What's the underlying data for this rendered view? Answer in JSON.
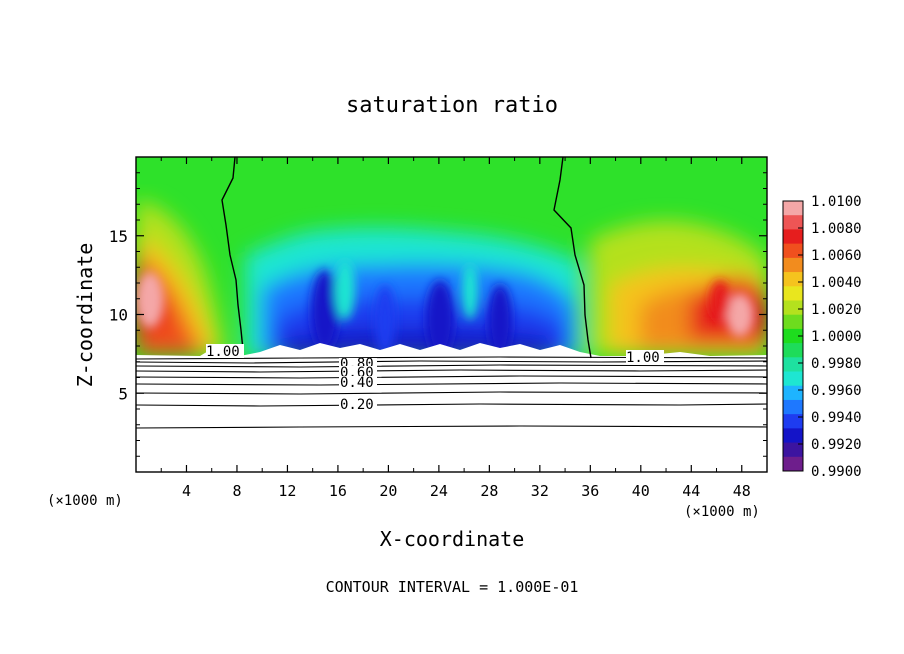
{
  "chart_data": {
    "type": "heatmap",
    "title": "saturation ratio",
    "xlabel": "X-coordinate",
    "ylabel": "Z-coordinate",
    "x_unit_left": "(×1000 m)",
    "x_unit_right": "(×1000 m)",
    "footnote": "CONTOUR INTERVAL = 1.000E-01",
    "xlim": [
      0,
      50
    ],
    "ylim": [
      0,
      20
    ],
    "x_ticks": [
      "4",
      "8",
      "12",
      "16",
      "20",
      "24",
      "28",
      "32",
      "36",
      "40",
      "44",
      "48"
    ],
    "y_ticks": [
      "5",
      "10",
      "15"
    ],
    "colorbar": {
      "range": [
        0.99,
        1.01
      ],
      "labels": [
        "1.0100",
        "1.0080",
        "1.0060",
        "1.0040",
        "1.0020",
        "1.0000",
        "0.9980",
        "0.9960",
        "0.9940",
        "0.9920",
        "0.9900"
      ],
      "colors": [
        "#f4a7a7",
        "#ee5555",
        "#e61e1e",
        "#f0501e",
        "#f28c1e",
        "#f5c31e",
        "#e9e61e",
        "#b4e11e",
        "#6edc1e",
        "#1edc1e",
        "#1edc5a",
        "#1ee1a0",
        "#1ee6d2",
        "#1eb4ff",
        "#1e78ff",
        "#1e3cf0",
        "#1414c8",
        "#3c14a0",
        "#6e1e8c"
      ]
    },
    "contour_labels": [
      "1.00",
      "1.00",
      "0.80",
      "0.60",
      "0.40",
      "0.20"
    ],
    "contour_levels": [
      0.2,
      0.4,
      0.6,
      0.8,
      1.0
    ]
  }
}
